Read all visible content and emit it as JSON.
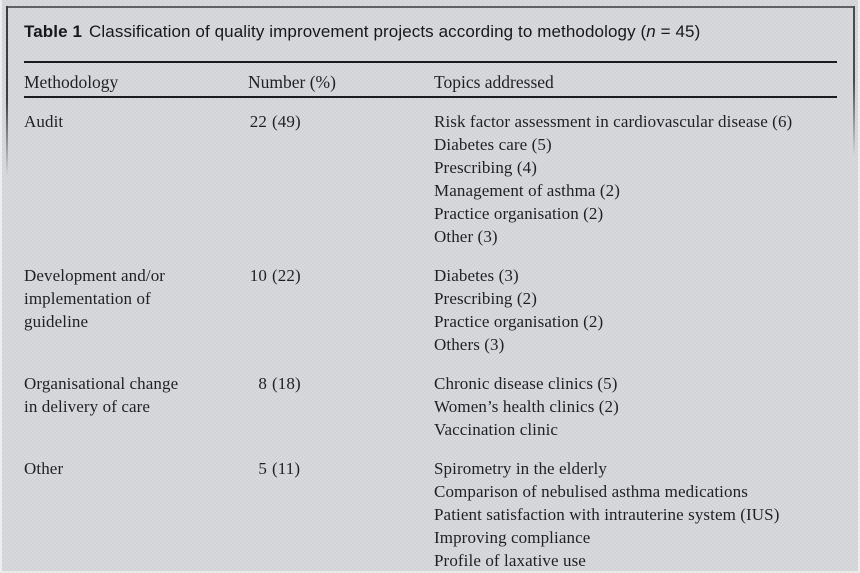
{
  "table": {
    "caption": {
      "label": "Table 1",
      "text_before_n": "Classification of quality improvement projects according to methodology (",
      "n_symbol": "n",
      "text_after_n": " = 45)"
    },
    "columns": [
      "Methodology",
      "Number (%)",
      "Topics addressed"
    ],
    "rows": [
      {
        "methodology": [
          "Audit"
        ],
        "number": "22",
        "percent": "(49)",
        "topics": [
          "Risk factor assessment in cardiovascular disease (6)",
          "Diabetes care (5)",
          "Prescribing (4)",
          "Management of asthma (2)",
          "Practice organisation (2)",
          "Other (3)"
        ]
      },
      {
        "methodology": [
          "Development and/or",
          "implementation of",
          "guideline"
        ],
        "number": "10",
        "percent": "(22)",
        "topics": [
          "Diabetes (3)",
          "Prescribing (2)",
          "Practice organisation (2)",
          "Others (3)"
        ]
      },
      {
        "methodology": [
          "Organisational change",
          "in delivery of care"
        ],
        "number": "8",
        "percent": "(18)",
        "topics": [
          "Chronic disease clinics (5)",
          "Women’s health clinics (2)",
          "Vaccination clinic"
        ]
      },
      {
        "methodology": [
          "Other"
        ],
        "number": "5",
        "percent": "(11)",
        "topics": [
          "Spirometry in the elderly",
          "Comparison of nebulised asthma medications",
          "Patient satisfaction with intrauterine system (IUS)",
          "Improving compliance",
          "Profile of laxative use"
        ]
      }
    ],
    "colors": {
      "background": "#d4d5d7",
      "text": "#1f2024",
      "rule": "#1b1c1f"
    }
  }
}
